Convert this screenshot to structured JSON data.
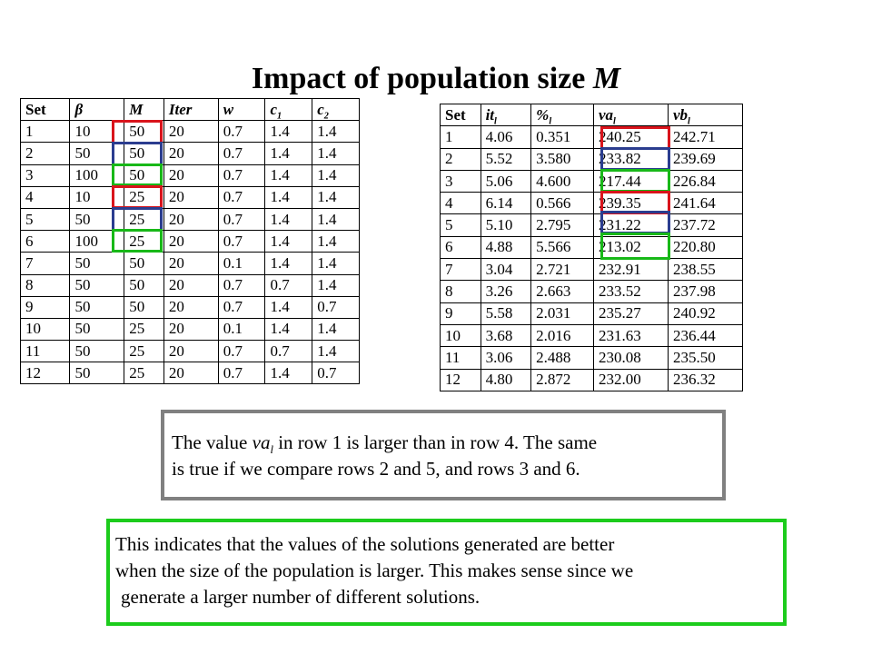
{
  "title": {
    "text": "Impact of population size",
    "symbol": "M"
  },
  "left_table": {
    "headers": {
      "h0": "Set",
      "h1": "β",
      "h2": "M",
      "h3": "Iter",
      "h4": "w",
      "h5": "c",
      "h5_sub": "1",
      "h6": "c",
      "h6_sub": "2"
    },
    "rows": [
      [
        "1",
        "10",
        "50",
        "20",
        "0.7",
        "1.4",
        "1.4"
      ],
      [
        "2",
        "50",
        "50",
        "20",
        "0.7",
        "1.4",
        "1.4"
      ],
      [
        "3",
        "100",
        "50",
        "20",
        "0.7",
        "1.4",
        "1.4"
      ],
      [
        "4",
        "10",
        "25",
        "20",
        "0.7",
        "1.4",
        "1.4"
      ],
      [
        "5",
        "50",
        "25",
        "20",
        "0.7",
        "1.4",
        "1.4"
      ],
      [
        "6",
        "100",
        "25",
        "20",
        "0.7",
        "1.4",
        "1.4"
      ],
      [
        "7",
        "50",
        "50",
        "20",
        "0.1",
        "1.4",
        "1.4"
      ],
      [
        "8",
        "50",
        "50",
        "20",
        "0.7",
        "0.7",
        "1.4"
      ],
      [
        "9",
        "50",
        "50",
        "20",
        "0.7",
        "1.4",
        "0.7"
      ],
      [
        "10",
        "50",
        "25",
        "20",
        "0.1",
        "1.4",
        "1.4"
      ],
      [
        "11",
        "50",
        "25",
        "20",
        "0.7",
        "0.7",
        "1.4"
      ],
      [
        "12",
        "50",
        "25",
        "20",
        "0.7",
        "1.4",
        "0.7"
      ]
    ]
  },
  "right_table": {
    "headers": {
      "h0": "Set",
      "h1": "it",
      "h1_sub": "l",
      "h2": "%",
      "h2_sub": "l",
      "h3": "va",
      "h3_sub": "l",
      "h4": "vb",
      "h4_sub": "l"
    },
    "rows": [
      [
        "1",
        "4.06",
        "0.351",
        "240.25",
        "242.71"
      ],
      [
        "2",
        "5.52",
        "3.580",
        "233.82",
        "239.69"
      ],
      [
        "3",
        "5.06",
        "4.600",
        "217.44",
        "226.84"
      ],
      [
        "4",
        "6.14",
        "0.566",
        "239.35",
        "241.64"
      ],
      [
        "5",
        "5.10",
        "2.795",
        "231.22",
        "237.72"
      ],
      [
        "6",
        "4.88",
        "5.566",
        "213.02",
        "220.80"
      ],
      [
        "7",
        "3.04",
        "2.721",
        "232.91",
        "238.55"
      ],
      [
        "8",
        "3.26",
        "2.663",
        "233.52",
        "237.98"
      ],
      [
        "9",
        "5.58",
        "2.031",
        "235.27",
        "240.92"
      ],
      [
        "10",
        "3.68",
        "2.016",
        "231.63",
        "236.44"
      ],
      [
        "11",
        "3.06",
        "2.488",
        "230.08",
        "235.50"
      ],
      [
        "12",
        "4.80",
        "2.872",
        "232.00",
        "236.32"
      ]
    ]
  },
  "highlight_colors": {
    "red": "#d9141c",
    "blue": "#2b3d8f",
    "green": "#18b818"
  },
  "note_gray": {
    "part1": "The value ",
    "var": "va",
    "var_sub": "l",
    "part2": " in row 1 is larger than in row 4. The same",
    "line2": "is true if we compare rows 2 and 5, and rows 3 and 6."
  },
  "note_green": {
    "line1": "This indicates that the values of the solutions generated are better",
    "line2": "when the size of the population is larger. This makes sense since we",
    "line3": "generate a larger number of different solutions."
  }
}
